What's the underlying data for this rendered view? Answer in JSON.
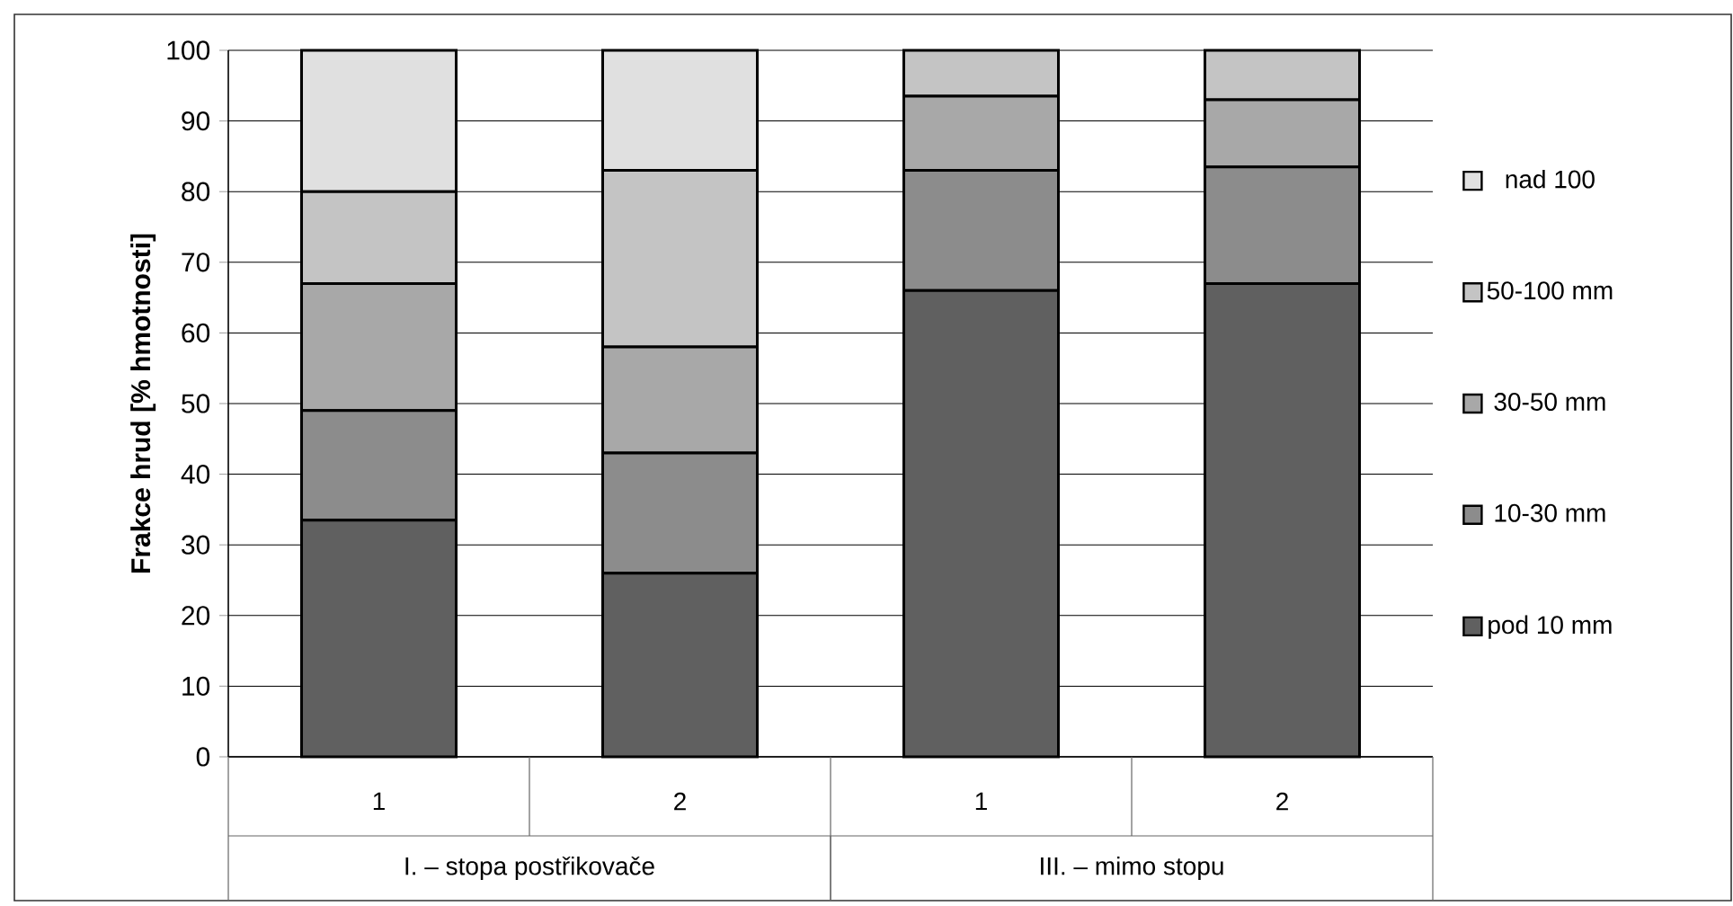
{
  "chart_data": {
    "type": "bar",
    "stacked": true,
    "ylabel": "Frakce hrud [% hmotnosti]",
    "categories": [
      "1",
      "2",
      "1",
      "2"
    ],
    "annotations": [
      "I. – stopa postřikovače",
      "III. – mimo stopu"
    ],
    "series": [
      {
        "name": "pod 10 mm",
        "color": "#606060",
        "values": [
          33.5,
          26,
          66,
          67
        ]
      },
      {
        "name": "10-30 mm",
        "color": "#8c8c8c",
        "values": [
          15.5,
          17,
          17,
          16.5
        ]
      },
      {
        "name": "30-50 mm",
        "color": "#a8a8a8",
        "values": [
          18,
          15,
          10.5,
          9.5
        ]
      },
      {
        "name": "50-100 mm",
        "color": "#c4c4c4",
        "values": [
          13,
          25,
          6.5,
          7
        ]
      },
      {
        "name": "nad 100",
        "color": "#e0e0e0",
        "values": [
          20,
          17,
          0,
          0
        ]
      }
    ],
    "ylim": [
      0,
      100
    ],
    "yticks": [
      0,
      10,
      20,
      30,
      40,
      50,
      60,
      70,
      80,
      90,
      100
    ],
    "grid": "y",
    "legend": "right"
  }
}
